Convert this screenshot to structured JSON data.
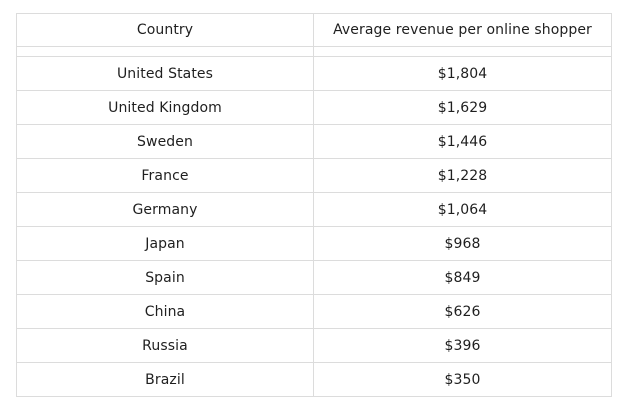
{
  "table": {
    "headers": {
      "country": "Country",
      "revenue": "Average revenue per online shopper"
    },
    "rows": [
      {
        "country": "United States",
        "revenue": "$1,804"
      },
      {
        "country": "United Kingdom",
        "revenue": "$1,629"
      },
      {
        "country": "Sweden",
        "revenue": "$1,446"
      },
      {
        "country": "France",
        "revenue": "$1,228"
      },
      {
        "country": "Germany",
        "revenue": "$1,064"
      },
      {
        "country": "Japan",
        "revenue": "$968"
      },
      {
        "country": "Spain",
        "revenue": "$849"
      },
      {
        "country": "China",
        "revenue": "$626"
      },
      {
        "country": "Russia",
        "revenue": "$396"
      },
      {
        "country": "Brazil",
        "revenue": "$350"
      }
    ]
  }
}
